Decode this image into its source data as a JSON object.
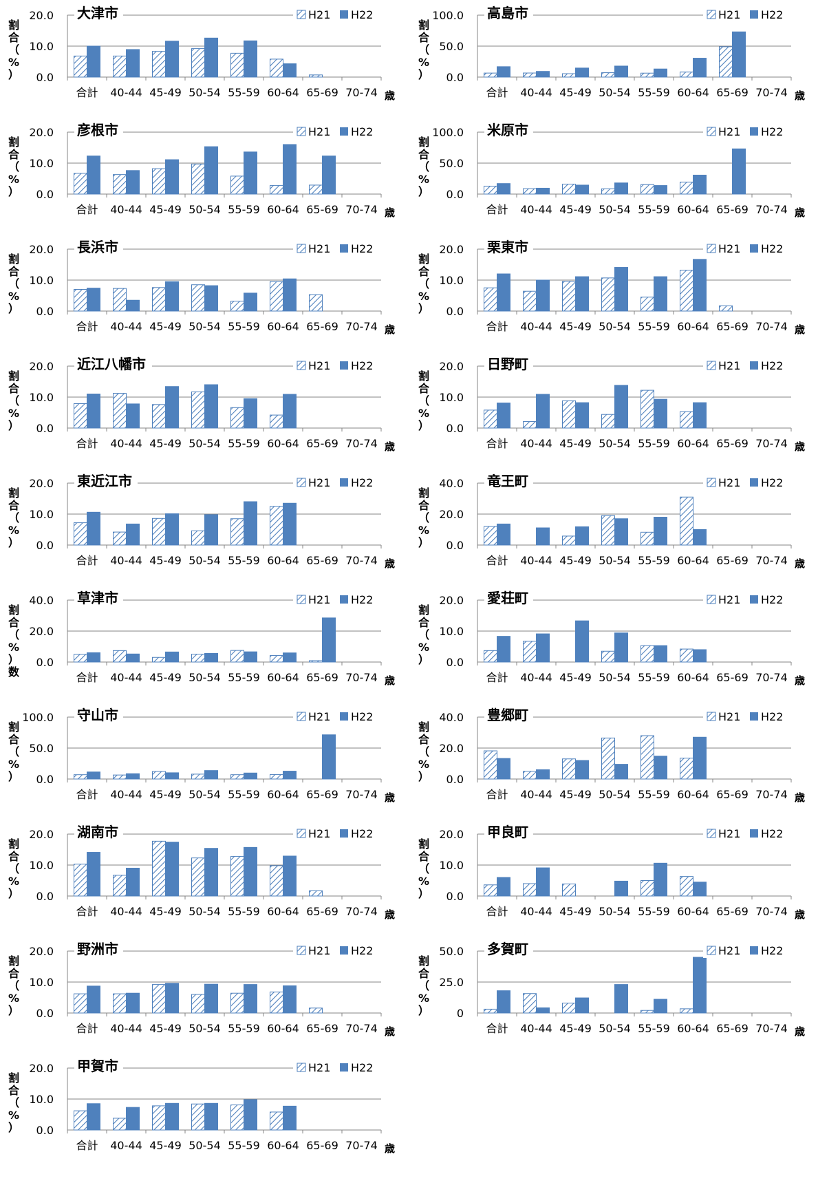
{
  "categories": [
    "合計",
    "40-44",
    "45-49",
    "50-54",
    "55-59",
    "60-64",
    "65-69",
    "70-74"
  ],
  "x_unit": "歳",
  "y_label": [
    "割",
    "合",
    "（",
    "%",
    "）"
  ],
  "colors": {
    "H21": "#4f81bd",
    "H22": "#4f81bd"
  },
  "chart_data": [
    {
      "type": "bar",
      "title": "大津市",
      "ylim": [
        0,
        20
      ],
      "yticks": [
        "0.0",
        "10.0",
        "20.0"
      ],
      "series": [
        {
          "name": "H21",
          "values": [
            6.8,
            6.8,
            8.3,
            9.2,
            7.7,
            5.8,
            0.7,
            0
          ]
        },
        {
          "name": "H22",
          "values": [
            10.0,
            8.9,
            11.6,
            12.6,
            11.7,
            4.3,
            0,
            0
          ]
        }
      ]
    },
    {
      "type": "bar",
      "title": "高島市",
      "ylim": [
        0,
        100
      ],
      "yticks": [
        "0.0",
        "50.0",
        "100.0"
      ],
      "series": [
        {
          "name": "H21",
          "values": [
            6.5,
            6.6,
            5.5,
            7.1,
            6.4,
            8.1,
            49.0,
            0
          ]
        },
        {
          "name": "H22",
          "values": [
            16.8,
            9.2,
            14.6,
            17.8,
            13.1,
            30.5,
            73.0,
            0
          ]
        }
      ]
    },
    {
      "type": "bar",
      "title": "彦根市",
      "ylim": [
        0,
        20
      ],
      "yticks": [
        "0.0",
        "10.0",
        "20.0"
      ],
      "series": [
        {
          "name": "H21",
          "values": [
            6.7,
            6.3,
            8.2,
            9.7,
            5.8,
            2.8,
            2.9,
            0
          ]
        },
        {
          "name": "H22",
          "values": [
            12.3,
            7.6,
            11.1,
            15.3,
            13.6,
            16.0,
            12.3,
            0
          ]
        }
      ]
    },
    {
      "type": "bar",
      "title": "米原市",
      "ylim": [
        0,
        100
      ],
      "yticks": [
        "0.0",
        "50.0",
        "100.0"
      ],
      "series": [
        {
          "name": "H21",
          "values": [
            12.8,
            8.7,
            16.0,
            8.5,
            15.3,
            19.2,
            0,
            0
          ]
        },
        {
          "name": "H22",
          "values": [
            17.0,
            9.5,
            14.5,
            18.0,
            13.8,
            30.6,
            73.0,
            0
          ]
        }
      ]
    },
    {
      "type": "bar",
      "title": "長浜市",
      "ylim": [
        0,
        20
      ],
      "yticks": [
        "0.0",
        "10.0",
        "20.0"
      ],
      "series": [
        {
          "name": "H21",
          "values": [
            7.0,
            7.3,
            7.6,
            8.5,
            3.2,
            9.5,
            5.3,
            0
          ]
        },
        {
          "name": "H22",
          "values": [
            7.4,
            3.5,
            9.5,
            8.2,
            5.8,
            10.4,
            0,
            0
          ]
        }
      ]
    },
    {
      "type": "bar",
      "title": "栗東市",
      "ylim": [
        0,
        20
      ],
      "yticks": [
        "0.0",
        "10.0",
        "20.0"
      ],
      "series": [
        {
          "name": "H21",
          "values": [
            7.5,
            6.4,
            9.6,
            10.7,
            4.5,
            13.2,
            1.7,
            0
          ]
        },
        {
          "name": "H22",
          "values": [
            12.0,
            10.0,
            11.1,
            14.1,
            11.1,
            16.7,
            0,
            0
          ]
        }
      ]
    },
    {
      "type": "bar",
      "title": "近江八幡市",
      "ylim": [
        0,
        20
      ],
      "yticks": [
        "0.0",
        "10.0",
        "20.0"
      ],
      "series": [
        {
          "name": "H21",
          "values": [
            7.9,
            11.2,
            7.6,
            11.7,
            6.6,
            4.2,
            0,
            0
          ]
        },
        {
          "name": "H22",
          "values": [
            11.0,
            7.8,
            13.4,
            14.0,
            9.5,
            10.9,
            0,
            0
          ]
        }
      ]
    },
    {
      "type": "bar",
      "title": "日野町",
      "ylim": [
        0,
        20
      ],
      "yticks": [
        "0.0",
        "10.0",
        "20.0"
      ],
      "series": [
        {
          "name": "H21",
          "values": [
            5.8,
            2.1,
            8.8,
            4.4,
            12.2,
            5.3,
            0,
            0
          ]
        },
        {
          "name": "H22",
          "values": [
            8.1,
            10.9,
            8.2,
            13.8,
            9.3,
            8.2,
            0,
            0
          ]
        }
      ]
    },
    {
      "type": "bar",
      "title": "東近江市",
      "ylim": [
        0,
        20
      ],
      "yticks": [
        "0.0",
        "10.0",
        "20.0"
      ],
      "series": [
        {
          "name": "H21",
          "values": [
            7.2,
            4.2,
            8.6,
            4.6,
            8.5,
            12.5,
            0,
            0
          ]
        },
        {
          "name": "H22",
          "values": [
            10.6,
            6.8,
            10.1,
            9.8,
            14.0,
            13.5,
            0,
            0
          ]
        }
      ]
    },
    {
      "type": "bar",
      "title": "竜王町",
      "ylim": [
        0,
        40
      ],
      "yticks": [
        "0.0",
        "20.0",
        "40.0"
      ],
      "series": [
        {
          "name": "H21",
          "values": [
            12.0,
            0,
            5.8,
            19.0,
            8.3,
            31.0,
            0,
            0
          ]
        },
        {
          "name": "H22",
          "values": [
            13.6,
            11.1,
            11.8,
            17.0,
            18.0,
            10.0,
            0,
            0
          ]
        }
      ]
    },
    {
      "type": "bar",
      "title": "草津市",
      "ylim": [
        0,
        40
      ],
      "yticks": [
        "0.0",
        "20.0",
        "40.0"
      ],
      "ylabel_extra": "数",
      "series": [
        {
          "name": "H21",
          "values": [
            5.0,
            7.4,
            3.0,
            5.1,
            7.5,
            4.2,
            0.9,
            0
          ]
        },
        {
          "name": "H22",
          "values": [
            6.0,
            5.2,
            6.5,
            5.6,
            6.6,
            5.9,
            28.5,
            0
          ]
        }
      ]
    },
    {
      "type": "bar",
      "title": "愛荘町",
      "ylim": [
        0,
        20
      ],
      "yticks": [
        "0.0",
        "10.0",
        "20.0"
      ],
      "series": [
        {
          "name": "H21",
          "values": [
            3.7,
            6.7,
            0,
            3.5,
            5.3,
            4.2,
            0,
            0
          ]
        },
        {
          "name": "H22",
          "values": [
            8.3,
            9.1,
            13.3,
            9.4,
            5.3,
            4.0,
            0,
            0
          ]
        }
      ]
    },
    {
      "type": "bar",
      "title": "守山市",
      "ylim": [
        0,
        100
      ],
      "yticks": [
        "0.0",
        "50.0",
        "100.0"
      ],
      "series": [
        {
          "name": "H21",
          "values": [
            7.0,
            6.5,
            12.2,
            7.9,
            7.0,
            7.3,
            0,
            0
          ]
        },
        {
          "name": "H22",
          "values": [
            11.4,
            8.6,
            10.1,
            13.7,
            9.7,
            12.7,
            71.4,
            0
          ]
        }
      ]
    },
    {
      "type": "bar",
      "title": "豊郷町",
      "ylim": [
        0,
        40
      ],
      "yticks": [
        "0.0",
        "20.0",
        "40.0"
      ],
      "series": [
        {
          "name": "H21",
          "values": [
            18.2,
            5.0,
            13.0,
            26.5,
            28.0,
            13.5,
            0,
            0
          ]
        },
        {
          "name": "H22",
          "values": [
            13.3,
            6.0,
            12.0,
            9.5,
            14.8,
            27.0,
            0,
            0
          ]
        }
      ]
    },
    {
      "type": "bar",
      "title": "湖南市",
      "ylim": [
        0,
        20
      ],
      "yticks": [
        "0.0",
        "10.0",
        "20.0"
      ],
      "series": [
        {
          "name": "H21",
          "values": [
            10.3,
            6.7,
            17.7,
            12.3,
            12.8,
            9.8,
            1.7,
            0
          ]
        },
        {
          "name": "H22",
          "values": [
            14.1,
            9.0,
            17.4,
            15.4,
            15.7,
            12.9,
            0,
            0
          ]
        }
      ]
    },
    {
      "type": "bar",
      "title": "甲良町",
      "ylim": [
        0,
        20
      ],
      "yticks": [
        "0.0",
        "10.0",
        "20.0"
      ],
      "series": [
        {
          "name": "H21",
          "values": [
            3.6,
            4.0,
            3.9,
            0,
            5.0,
            6.3,
            0,
            0
          ]
        },
        {
          "name": "H22",
          "values": [
            6.0,
            9.1,
            0,
            4.8,
            10.6,
            4.5,
            0,
            0
          ]
        }
      ]
    },
    {
      "type": "bar",
      "title": "野洲市",
      "ylim": [
        0,
        20
      ],
      "yticks": [
        "0.0",
        "10.0",
        "20.0"
      ],
      "series": [
        {
          "name": "H21",
          "values": [
            6.2,
            6.2,
            9.2,
            6.0,
            6.4,
            6.8,
            1.6,
            0
          ]
        },
        {
          "name": "H22",
          "values": [
            8.7,
            6.4,
            9.6,
            9.3,
            9.2,
            8.8,
            0,
            0
          ]
        }
      ]
    },
    {
      "type": "bar",
      "title": "多賀町",
      "ylim": [
        0,
        50
      ],
      "yticks": [
        "0",
        "25.0",
        "50.0"
      ],
      "series": [
        {
          "name": "H21",
          "values": [
            3.1,
            15.7,
            8.0,
            0,
            2.1,
            3.4,
            0,
            0
          ]
        },
        {
          "name": "H22",
          "values": [
            18.0,
            4.2,
            12.2,
            23.0,
            11.1,
            45.0,
            0,
            0
          ]
        }
      ]
    },
    {
      "type": "bar",
      "title": "甲賀市",
      "ylim": [
        0,
        20
      ],
      "yticks": [
        "0.0",
        "10.0",
        "20.0"
      ],
      "series": [
        {
          "name": "H21",
          "values": [
            6.2,
            3.8,
            7.8,
            8.4,
            8.1,
            5.8,
            0,
            0
          ]
        },
        {
          "name": "H22",
          "values": [
            8.5,
            7.3,
            8.6,
            8.6,
            9.8,
            7.7,
            0,
            0
          ]
        }
      ]
    }
  ]
}
